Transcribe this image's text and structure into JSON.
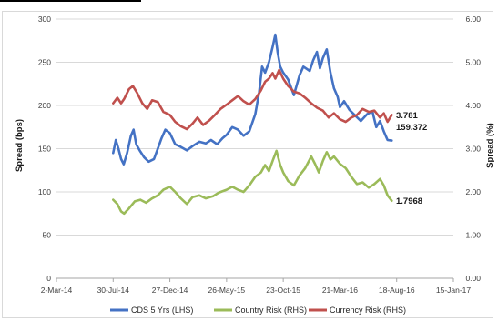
{
  "chart_data": {
    "type": "line",
    "title": "",
    "ylabel_left": "Spread (bps)",
    "ylabel_right": "Spread (%)",
    "ylim_left": [
      0,
      300
    ],
    "ylim_right": [
      0,
      6
    ],
    "yticks_left": [
      "0",
      "50",
      "100",
      "150",
      "200",
      "250",
      "300"
    ],
    "yticks_right": [
      "0.00",
      "1.00",
      "2.00",
      "3.00",
      "4.00",
      "5.00",
      "6.00"
    ],
    "xticks": [
      "2-Mar-14",
      "30-Jul-14",
      "27-Dec-14",
      "26-May-15",
      "23-Oct-15",
      "21-Mar-16",
      "18-Aug-16",
      "15-Jan-17"
    ],
    "xlim": [
      "2014-03-02",
      "2017-01-15"
    ],
    "grid": "horizontal",
    "legend_position": "bottom",
    "end_labels": [
      "3.781",
      "159.372",
      "1.7968"
    ],
    "series": [
      {
        "name": "CDS 5 Yrs (LHS)",
        "axis": "left",
        "color": "#4472c4",
        "points": [
          [
            "2014-07-30",
            145
          ],
          [
            "2014-08-06",
            160
          ],
          [
            "2014-08-13",
            150
          ],
          [
            "2014-08-20",
            138
          ],
          [
            "2014-08-27",
            132
          ],
          [
            "2014-09-05",
            145
          ],
          [
            "2014-09-15",
            165
          ],
          [
            "2014-09-22",
            172
          ],
          [
            "2014-09-29",
            155
          ],
          [
            "2014-10-08",
            148
          ],
          [
            "2014-10-20",
            140
          ],
          [
            "2014-11-01",
            135
          ],
          [
            "2014-11-15",
            138
          ],
          [
            "2014-11-25",
            150
          ],
          [
            "2014-12-05",
            162
          ],
          [
            "2014-12-15",
            172
          ],
          [
            "2014-12-27",
            168
          ],
          [
            "2015-01-10",
            155
          ],
          [
            "2015-01-25",
            152
          ],
          [
            "2015-02-10",
            148
          ],
          [
            "2015-02-25",
            153
          ],
          [
            "2015-03-15",
            158
          ],
          [
            "2015-04-01",
            156
          ],
          [
            "2015-04-15",
            160
          ],
          [
            "2015-05-01",
            155
          ],
          [
            "2015-05-15",
            162
          ],
          [
            "2015-05-26",
            166
          ],
          [
            "2015-06-10",
            175
          ],
          [
            "2015-06-25",
            172
          ],
          [
            "2015-07-10",
            165
          ],
          [
            "2015-07-25",
            170
          ],
          [
            "2015-08-10",
            190
          ],
          [
            "2015-08-20",
            215
          ],
          [
            "2015-08-28",
            245
          ],
          [
            "2015-09-05",
            238
          ],
          [
            "2015-09-15",
            250
          ],
          [
            "2015-09-25",
            268
          ],
          [
            "2015-10-02",
            282
          ],
          [
            "2015-10-08",
            262
          ],
          [
            "2015-10-15",
            245
          ],
          [
            "2015-10-23",
            238
          ],
          [
            "2015-11-05",
            230
          ],
          [
            "2015-11-20",
            212
          ],
          [
            "2015-12-05",
            235
          ],
          [
            "2015-12-15",
            245
          ],
          [
            "2016-01-01",
            240
          ],
          [
            "2016-01-10",
            252
          ],
          [
            "2016-01-20",
            262
          ],
          [
            "2016-01-28",
            243
          ],
          [
            "2016-02-05",
            255
          ],
          [
            "2016-02-15",
            265
          ],
          [
            "2016-02-25",
            238
          ],
          [
            "2016-03-05",
            220
          ],
          [
            "2016-03-15",
            210
          ],
          [
            "2016-03-21",
            198
          ],
          [
            "2016-04-01",
            205
          ],
          [
            "2016-04-15",
            195
          ],
          [
            "2016-05-01",
            188
          ],
          [
            "2016-05-15",
            182
          ],
          [
            "2016-06-01",
            190
          ],
          [
            "2016-06-15",
            193
          ],
          [
            "2016-06-25",
            175
          ],
          [
            "2016-07-05",
            182
          ],
          [
            "2016-07-15",
            170
          ],
          [
            "2016-07-25",
            160
          ],
          [
            "2016-08-05",
            159.372
          ]
        ]
      },
      {
        "name": "Country Risk (RHS)",
        "axis": "right",
        "color": "#9bbb59",
        "points": [
          [
            "2014-07-30",
            1.82
          ],
          [
            "2014-08-10",
            1.72
          ],
          [
            "2014-08-20",
            1.55
          ],
          [
            "2014-08-28",
            1.5
          ],
          [
            "2014-09-10",
            1.62
          ],
          [
            "2014-09-25",
            1.78
          ],
          [
            "2014-10-10",
            1.82
          ],
          [
            "2014-10-25",
            1.75
          ],
          [
            "2014-11-10",
            1.85
          ],
          [
            "2014-11-25",
            1.92
          ],
          [
            "2014-12-10",
            2.05
          ],
          [
            "2014-12-27",
            2.12
          ],
          [
            "2015-01-10",
            2.0
          ],
          [
            "2015-01-25",
            1.85
          ],
          [
            "2015-02-10",
            1.72
          ],
          [
            "2015-02-25",
            1.88
          ],
          [
            "2015-03-15",
            1.92
          ],
          [
            "2015-04-01",
            1.85
          ],
          [
            "2015-04-20",
            1.9
          ],
          [
            "2015-05-05",
            1.98
          ],
          [
            "2015-05-26",
            2.05
          ],
          [
            "2015-06-10",
            2.12
          ],
          [
            "2015-06-25",
            2.05
          ],
          [
            "2015-07-10",
            2.0
          ],
          [
            "2015-07-25",
            2.15
          ],
          [
            "2015-08-10",
            2.35
          ],
          [
            "2015-08-25",
            2.45
          ],
          [
            "2015-09-05",
            2.62
          ],
          [
            "2015-09-15",
            2.48
          ],
          [
            "2015-09-25",
            2.72
          ],
          [
            "2015-10-05",
            2.95
          ],
          [
            "2015-10-15",
            2.62
          ],
          [
            "2015-10-23",
            2.45
          ],
          [
            "2015-11-05",
            2.25
          ],
          [
            "2015-11-20",
            2.15
          ],
          [
            "2015-12-05",
            2.38
          ],
          [
            "2015-12-20",
            2.55
          ],
          [
            "2016-01-05",
            2.82
          ],
          [
            "2016-01-15",
            2.65
          ],
          [
            "2016-01-25",
            2.45
          ],
          [
            "2016-02-05",
            2.72
          ],
          [
            "2016-02-15",
            2.92
          ],
          [
            "2016-02-25",
            2.75
          ],
          [
            "2016-03-05",
            2.82
          ],
          [
            "2016-03-21",
            2.65
          ],
          [
            "2016-04-05",
            2.55
          ],
          [
            "2016-04-20",
            2.35
          ],
          [
            "2016-05-05",
            2.18
          ],
          [
            "2016-05-20",
            2.22
          ],
          [
            "2016-06-05",
            2.1
          ],
          [
            "2016-06-20",
            2.18
          ],
          [
            "2016-07-05",
            2.3
          ],
          [
            "2016-07-15",
            2.15
          ],
          [
            "2016-07-25",
            1.92
          ],
          [
            "2016-08-05",
            1.7968
          ]
        ]
      },
      {
        "name": "Currency Risk (RHS)",
        "axis": "right",
        "color": "#c0504d",
        "points": [
          [
            "2014-07-30",
            4.05
          ],
          [
            "2014-08-10",
            4.18
          ],
          [
            "2014-08-20",
            4.05
          ],
          [
            "2014-08-28",
            4.15
          ],
          [
            "2014-09-10",
            4.38
          ],
          [
            "2014-09-20",
            4.45
          ],
          [
            "2014-10-01",
            4.3
          ],
          [
            "2014-10-15",
            4.05
          ],
          [
            "2014-10-28",
            3.92
          ],
          [
            "2014-11-10",
            4.12
          ],
          [
            "2014-11-25",
            4.08
          ],
          [
            "2014-12-10",
            3.85
          ],
          [
            "2014-12-27",
            3.78
          ],
          [
            "2015-01-10",
            3.62
          ],
          [
            "2015-01-25",
            3.52
          ],
          [
            "2015-02-10",
            3.45
          ],
          [
            "2015-02-25",
            3.58
          ],
          [
            "2015-03-10",
            3.72
          ],
          [
            "2015-03-25",
            3.55
          ],
          [
            "2015-04-10",
            3.65
          ],
          [
            "2015-04-25",
            3.78
          ],
          [
            "2015-05-10",
            3.92
          ],
          [
            "2015-05-26",
            4.02
          ],
          [
            "2015-06-10",
            4.12
          ],
          [
            "2015-06-25",
            4.22
          ],
          [
            "2015-07-10",
            4.1
          ],
          [
            "2015-07-25",
            4.02
          ],
          [
            "2015-08-10",
            4.15
          ],
          [
            "2015-08-25",
            4.35
          ],
          [
            "2015-09-05",
            4.55
          ],
          [
            "2015-09-15",
            4.62
          ],
          [
            "2015-09-25",
            4.75
          ],
          [
            "2015-10-02",
            4.62
          ],
          [
            "2015-10-12",
            4.82
          ],
          [
            "2015-10-23",
            4.62
          ],
          [
            "2015-11-05",
            4.45
          ],
          [
            "2015-11-20",
            4.32
          ],
          [
            "2015-12-05",
            4.28
          ],
          [
            "2015-12-20",
            4.18
          ],
          [
            "2016-01-05",
            4.05
          ],
          [
            "2016-01-20",
            3.95
          ],
          [
            "2016-02-05",
            3.88
          ],
          [
            "2016-02-20",
            3.72
          ],
          [
            "2016-03-05",
            3.82
          ],
          [
            "2016-03-21",
            3.68
          ],
          [
            "2016-04-05",
            3.62
          ],
          [
            "2016-04-20",
            3.72
          ],
          [
            "2016-05-05",
            3.78
          ],
          [
            "2016-05-20",
            3.92
          ],
          [
            "2016-06-05",
            3.85
          ],
          [
            "2016-06-20",
            3.88
          ],
          [
            "2016-07-05",
            3.72
          ],
          [
            "2016-07-15",
            3.82
          ],
          [
            "2016-07-25",
            3.62
          ],
          [
            "2016-08-05",
            3.781
          ]
        ]
      }
    ]
  }
}
